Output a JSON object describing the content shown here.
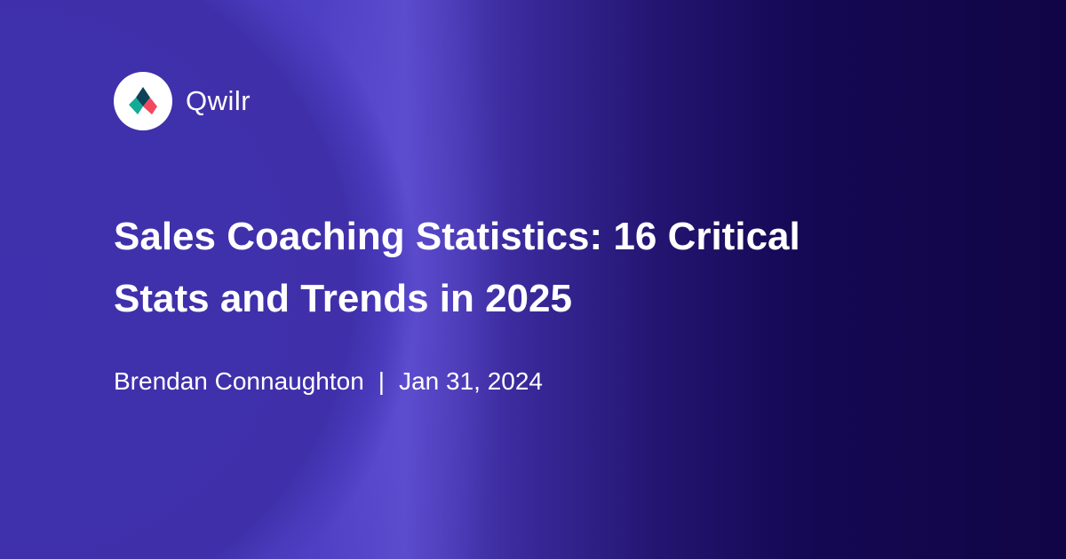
{
  "brand": {
    "name": "Qwilr",
    "logo_icon": "qwilr-logo-icon",
    "colors": {
      "teal": "#12ab96",
      "red": "#f2475f",
      "navy": "#0d4258"
    }
  },
  "post": {
    "title_line1": "Sales Coaching Statistics: 16 Critical",
    "title_line2": "Stats and Trends in 2025",
    "author": "Brendan Connaughton",
    "separator": "|",
    "date": "Jan 31, 2024"
  }
}
